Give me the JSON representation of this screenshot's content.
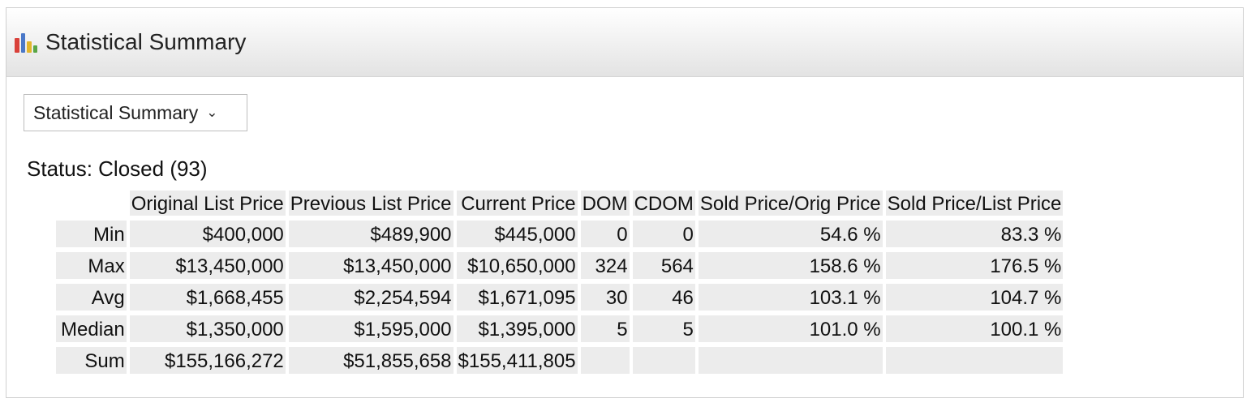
{
  "panel": {
    "title": "Statistical Summary",
    "icon": "bar-chart-icon"
  },
  "dropdown": {
    "selected": "Statistical Summary"
  },
  "status_text": "Status: Closed (93)",
  "table": {
    "columns": [
      "Original List Price",
      "Previous List Price",
      "Current Price",
      "DOM",
      "CDOM",
      "Sold Price/Orig Price",
      "Sold Price/List Price"
    ],
    "rows": [
      {
        "label": "Min",
        "cells": [
          "$400,000",
          "$489,900",
          "$445,000",
          "0",
          "0",
          "54.6 %",
          "83.3 %"
        ]
      },
      {
        "label": "Max",
        "cells": [
          "$13,450,000",
          "$13,450,000",
          "$10,650,000",
          "324",
          "564",
          "158.6 %",
          "176.5 %"
        ]
      },
      {
        "label": "Avg",
        "cells": [
          "$1,668,455",
          "$2,254,594",
          "$1,671,095",
          "30",
          "46",
          "103.1 %",
          "104.7 %"
        ]
      },
      {
        "label": "Median",
        "cells": [
          "$1,350,000",
          "$1,595,000",
          "$1,395,000",
          "5",
          "5",
          "101.0 %",
          "100.1 %"
        ]
      },
      {
        "label": "Sum",
        "cells": [
          "$155,166,272",
          "$51,855,658",
          "$155,411,805",
          "",
          "",
          "",
          ""
        ]
      }
    ]
  },
  "colors": {
    "icon_bars": [
      "#d9413a",
      "#4a78c8",
      "#e2b52b",
      "#5aa646"
    ]
  }
}
